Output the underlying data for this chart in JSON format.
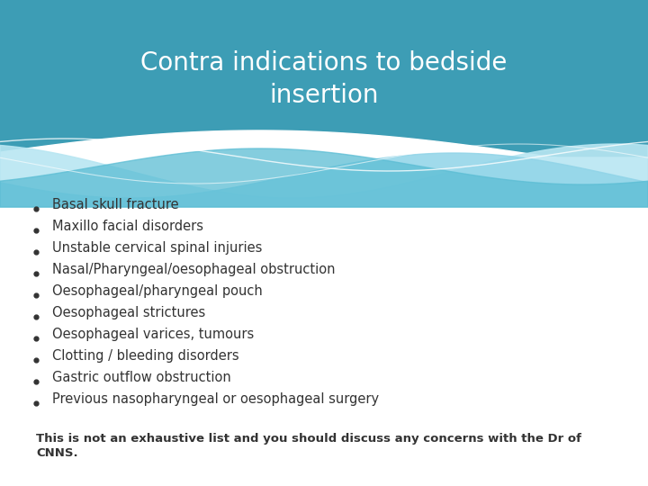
{
  "title_line1": "Contra indications to bedside",
  "title_line2": "insertion",
  "title_color": "#ffffff",
  "title_bg_color": "#3d9db5",
  "bg_color": "#ffffff",
  "bullet_items": [
    "Basal skull fracture",
    "Maxillo facial disorders",
    "Unstable cervical spinal injuries",
    "Nasal/Pharyngeal/oesophageal obstruction",
    "Oesophageal/pharyngeal pouch",
    "Oesophageal strictures",
    "Oesophageal varices, tumours",
    "Clotting / bleeding disorders",
    "Gastric outflow obstruction",
    "Previous nasopharyngeal or oesophageal surgery"
  ],
  "bullet_color": "#333333",
  "footer_line1": "This is not an exhaustive list and you should discuss any concerns with the Dr of",
  "footer_line2": "CNNS.",
  "footer_color": "#333333",
  "wave_color1": "#5bbdd4",
  "wave_color2": "#90d4e8",
  "wave_color3": "#b8e6f2",
  "wave_white": "#e8f6fa",
  "title_fontsize": 20,
  "bullet_fontsize": 10.5,
  "footer_fontsize": 9.5
}
